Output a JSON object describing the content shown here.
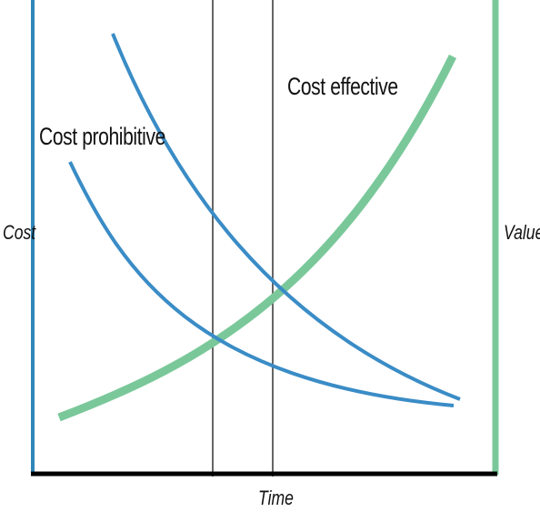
{
  "labels": {
    "y_left": "Cost",
    "y_right": "Value",
    "x": "Time",
    "region_left": "Cost prohibitive",
    "region_right": "Cost effective"
  },
  "colors": {
    "cost_axis": "#2f86b8",
    "value_axis": "#7ac89a",
    "cost_curve": "#3a8cc6",
    "value_curve": "#7ac89a",
    "marker_line": "#666666",
    "x_axis": "#000000"
  }
}
